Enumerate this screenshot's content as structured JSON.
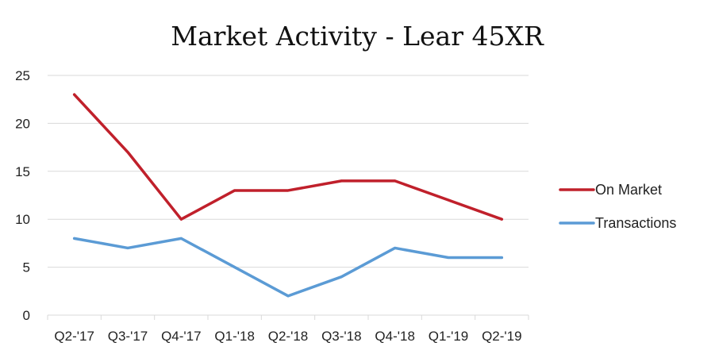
{
  "chart_data": {
    "type": "line",
    "title": "Market Activity - Lear 45XR",
    "xlabel": "",
    "ylabel": "",
    "categories": [
      "Q2-'17",
      "Q3-'17",
      "Q4-'17",
      "Q1-'18",
      "Q2-'18",
      "Q3-'18",
      "Q4-'18",
      "Q1-'19",
      "Q2-'19"
    ],
    "ylim": [
      0,
      25
    ],
    "yticks": [
      0,
      5,
      10,
      15,
      20,
      25
    ],
    "grid": true,
    "legend_position": "right",
    "series": [
      {
        "name": "On Market",
        "color": "#c0202b",
        "values": [
          23,
          17,
          10,
          13,
          13,
          14,
          14,
          12,
          10
        ]
      },
      {
        "name": "Transactions",
        "color": "#5b9bd5",
        "values": [
          8,
          7,
          8,
          5,
          2,
          4,
          7,
          6,
          6
        ]
      }
    ]
  }
}
